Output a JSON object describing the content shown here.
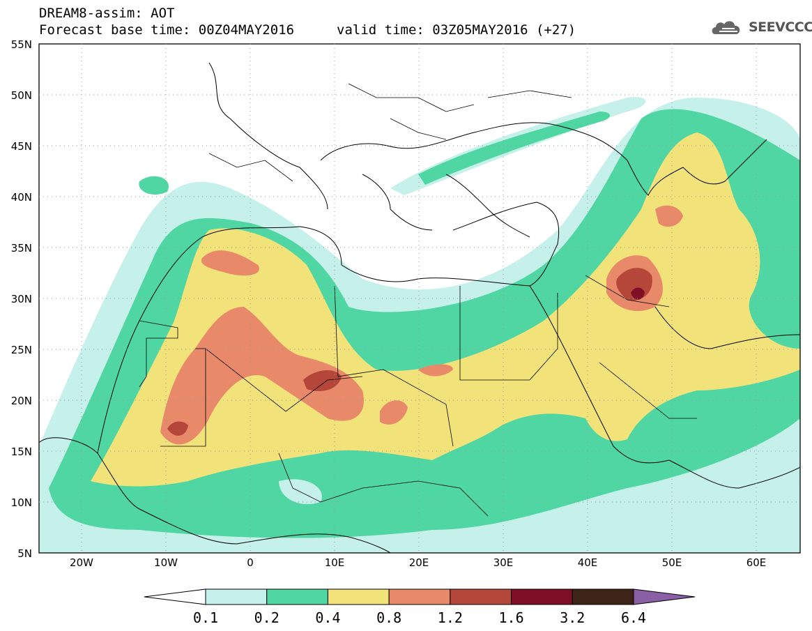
{
  "header": {
    "title": "DREAM8-assim: AOT",
    "base_time": "Forecast base time: 00Z04MAY2016",
    "valid_time": "valid time: 03Z05MAY2016 (+27)",
    "logo_text": "SEEVCCC"
  },
  "map": {
    "lat_labels": [
      "55N",
      "50N",
      "45N",
      "40N",
      "35N",
      "30N",
      "25N",
      "20N",
      "15N",
      "10N",
      "5N"
    ],
    "lon_labels": [
      "20W",
      "10W",
      "0",
      "10E",
      "20E",
      "30E",
      "40E",
      "50E",
      "60E"
    ],
    "variable": "AOT"
  },
  "legend": {
    "levels": [
      "0.1",
      "0.2",
      "0.4",
      "0.8",
      "1.2",
      "1.6",
      "3.2",
      "6.4"
    ],
    "colors": [
      "#ffffff",
      "#c6f0ea",
      "#4fd6a2",
      "#f2e27a",
      "#e8896a",
      "#b5463a",
      "#7e0f25",
      "#3c2416",
      "#8a5fa6"
    ]
  }
}
